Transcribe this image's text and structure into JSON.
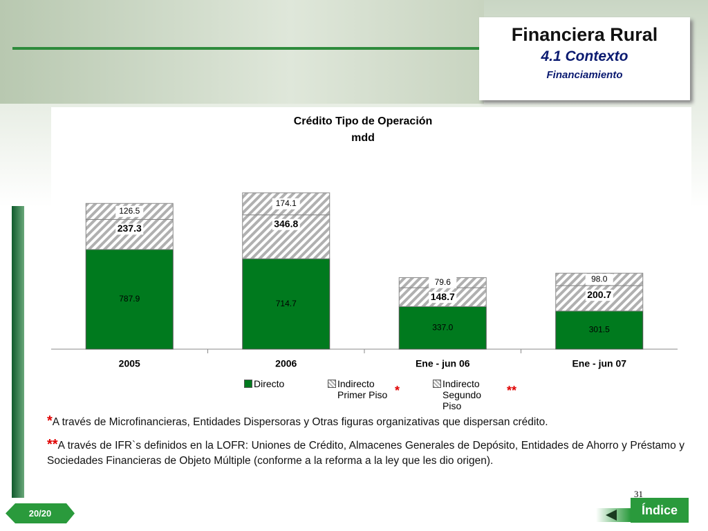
{
  "header": {
    "title": "Financiera Rural",
    "subtitle": "4.1 Contexto",
    "section": "Financiamiento"
  },
  "chart_data": {
    "type": "bar",
    "stacked": true,
    "title": "Crédito Tipo de Operación",
    "subtitle": "mdd",
    "categories": [
      "2005",
      "2006",
      "Ene - jun 06",
      "Ene - jun 07"
    ],
    "series": [
      {
        "name": "Directo",
        "color": "#007a1e",
        "hatch": false,
        "values": [
          787.9,
          714.7,
          337.0,
          301.5
        ],
        "value_labels": [
          "787.9",
          "714.7",
          "337.0",
          "301.5"
        ]
      },
      {
        "name": "Indirecto Primer Piso",
        "note": "*",
        "color": "#b0b0b0",
        "hatch": true,
        "values": [
          237.3,
          346.8,
          148.7,
          200.7
        ],
        "value_labels": [
          "237.3",
          "346.8",
          "148.7",
          "200.7"
        ]
      },
      {
        "name": "Indirecto Segundo Piso",
        "note": "**",
        "color": "#b0b0b0",
        "hatch": true,
        "values": [
          126.5,
          174.1,
          79.6,
          98.0
        ],
        "value_labels": [
          "126.5",
          "174.1",
          "79.6",
          "98.0"
        ]
      }
    ]
  },
  "footnotes": [
    {
      "marker": "*",
      "text": "A través de Microfinancieras, Entidades Dispersoras y Otras figuras organizativas que dispersan crédito."
    },
    {
      "marker": "**",
      "text": "A través de IFR`s definidos en la LOFR: Uniones de Crédito, Almacenes Generales de Depósito, Entidades de Ahorro y Préstamo y Sociedades Financieras de Objeto Múltiple (conforme a la reforma a la ley que les dio origen)."
    }
  ],
  "page": {
    "counter": "20/20",
    "number": "31"
  },
  "nav": {
    "index": "Índice"
  }
}
